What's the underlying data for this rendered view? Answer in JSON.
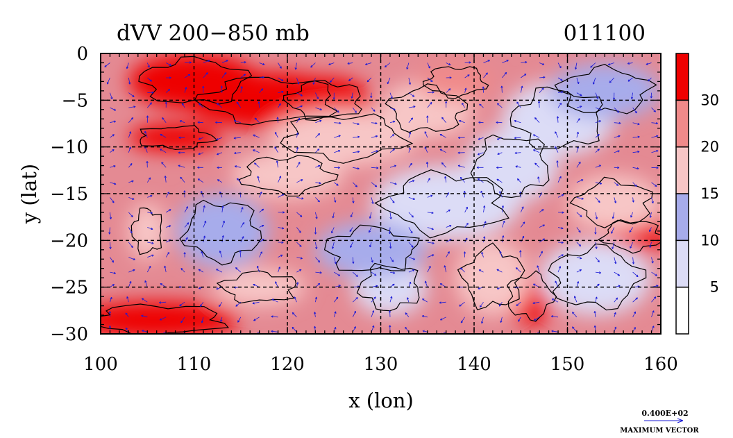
{
  "chart_data": {
    "type": "heatmap",
    "title_left": "dVV 200−850 mb",
    "title_right": "011100",
    "xlabel": "x (lon)",
    "ylabel": "y (lat)",
    "xlim": [
      100,
      160
    ],
    "ylim": [
      -30,
      0
    ],
    "xticks": [
      100,
      110,
      120,
      130,
      140,
      150,
      160
    ],
    "yticks": [
      0,
      -5,
      -10,
      -15,
      -20,
      -25,
      -30
    ],
    "grid": true,
    "colorbar": {
      "levels": [
        0,
        5,
        10,
        15,
        20,
        30,
        35
      ],
      "labels": [
        "5",
        "10",
        "15",
        "20",
        "30"
      ],
      "colors": [
        "#ffffff",
        "#dcdcf6",
        "#a7aceb",
        "#f7c6c6",
        "#f08a8a",
        "#ee0000"
      ]
    },
    "vector_legend": {
      "value": "0.400E+02",
      "label": "MAXIMUM VECTOR"
    },
    "colors": {
      "vector": "#1a1ad6",
      "contour": "#000000",
      "grid": "#000000"
    },
    "regions": [
      {
        "lon": 110,
        "lat": -3,
        "rlon": 7,
        "rlat": 3,
        "value": 36
      },
      {
        "lon": 118,
        "lat": -5,
        "rlon": 9,
        "rlat": 3,
        "value": 33
      },
      {
        "lon": 124,
        "lat": -5,
        "rlon": 5,
        "rlat": 2.5,
        "value": 30
      },
      {
        "lon": 108,
        "lat": -9,
        "rlon": 5,
        "rlat": 1.5,
        "value": 31
      },
      {
        "lon": 126,
        "lat": -9,
        "rlon": 8,
        "rlat": 3,
        "value": 18
      },
      {
        "lon": 135,
        "lat": -6,
        "rlon": 5,
        "rlat": 3,
        "value": 16
      },
      {
        "lon": 138,
        "lat": -3,
        "rlon": 4,
        "rlat": 2,
        "value": 22
      },
      {
        "lon": 149,
        "lat": -7,
        "rlon": 6,
        "rlat": 4,
        "value": 7
      },
      {
        "lon": 154,
        "lat": -4,
        "rlon": 6,
        "rlat": 3,
        "value": 11
      },
      {
        "lon": 137,
        "lat": -16,
        "rlon": 8,
        "rlat": 4,
        "value": 6
      },
      {
        "lon": 131,
        "lat": -25,
        "rlon": 4,
        "rlat": 3,
        "value": 6
      },
      {
        "lon": 129,
        "lat": -21,
        "rlon": 6,
        "rlat": 3,
        "value": 12
      },
      {
        "lon": 113,
        "lat": -19,
        "rlon": 5,
        "rlat": 4,
        "value": 11
      },
      {
        "lon": 120,
        "lat": -13,
        "rlon": 6,
        "rlat": 2.5,
        "value": 19
      },
      {
        "lon": 117,
        "lat": -25,
        "rlon": 5,
        "rlat": 2,
        "value": 18
      },
      {
        "lon": 106,
        "lat": -28.5,
        "rlon": 9,
        "rlat": 2,
        "value": 33
      },
      {
        "lon": 105,
        "lat": -19,
        "rlon": 2,
        "rlat": 3,
        "value": 17
      },
      {
        "lon": 146,
        "lat": -26,
        "rlon": 3,
        "rlat": 3,
        "value": 31
      },
      {
        "lon": 142,
        "lat": -24,
        "rlon": 4,
        "rlat": 4,
        "value": 18
      },
      {
        "lon": 157,
        "lat": -19.5,
        "rlon": 4,
        "rlat": 2,
        "value": 31
      },
      {
        "lon": 155,
        "lat": -16,
        "rlon": 5,
        "rlat": 3,
        "value": 19
      },
      {
        "lon": 153,
        "lat": -24,
        "rlon": 6,
        "rlat": 4,
        "value": 9
      },
      {
        "lon": 144,
        "lat": -12,
        "rlon": 5,
        "rlat": 4,
        "value": 8
      }
    ]
  }
}
